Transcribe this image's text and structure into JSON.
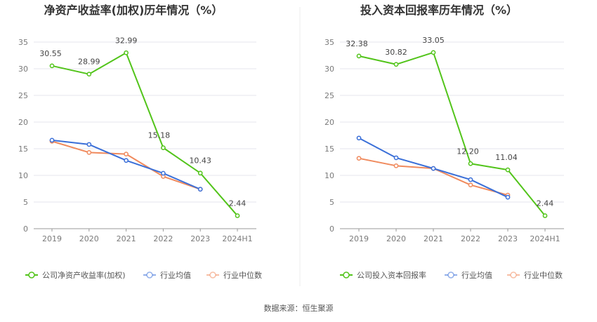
{
  "source": "数据来源：恒生聚源",
  "chart_data": [
    {
      "type": "line",
      "title": "净资产收益率(加权)历年情况（%）",
      "categories": [
        "2019",
        "2020",
        "2021",
        "2022",
        "2023",
        "2024H1"
      ],
      "ylim": [
        0,
        35
      ],
      "yticks": [
        "0",
        "5",
        "10",
        "15",
        "20",
        "25",
        "30",
        "35"
      ],
      "grid": true,
      "legend_position": "bottom",
      "series": [
        {
          "name": "公司净资产收益率(加权)",
          "color": "#52c41a",
          "values": [
            30.55,
            28.99,
            32.99,
            15.18,
            10.43,
            2.44
          ],
          "labels": [
            "30.55",
            "28.99",
            "32.99",
            "15.18",
            "10.43",
            "2.44"
          ]
        },
        {
          "name": "行业均值",
          "color": "#3a6fd8",
          "values": [
            16.6,
            15.8,
            12.8,
            10.4,
            7.4,
            null
          ]
        },
        {
          "name": "行业中位数",
          "color": "#f08a5d",
          "values": [
            16.4,
            14.3,
            14.0,
            9.8,
            7.4,
            null
          ]
        }
      ]
    },
    {
      "type": "line",
      "title": "投入资本回报率历年情况（%）",
      "categories": [
        "2019",
        "2020",
        "2021",
        "2022",
        "2023",
        "2024H1"
      ],
      "ylim": [
        0,
        35
      ],
      "yticks": [
        "0",
        "5",
        "10",
        "15",
        "20",
        "25",
        "30",
        "35"
      ],
      "grid": true,
      "legend_position": "bottom",
      "series": [
        {
          "name": "公司投入资本回报率",
          "color": "#52c41a",
          "values": [
            32.38,
            30.82,
            33.05,
            12.2,
            11.04,
            2.44
          ],
          "labels": [
            "32.38",
            "30.82",
            "33.05",
            "12.20",
            "11.04",
            "2.44"
          ]
        },
        {
          "name": "行业均值",
          "color": "#3a6fd8",
          "values": [
            17.0,
            13.3,
            11.3,
            9.2,
            5.9,
            null
          ]
        },
        {
          "name": "行业中位数",
          "color": "#f08a5d",
          "values": [
            13.2,
            11.8,
            11.3,
            8.2,
            6.3,
            null
          ]
        }
      ]
    }
  ]
}
